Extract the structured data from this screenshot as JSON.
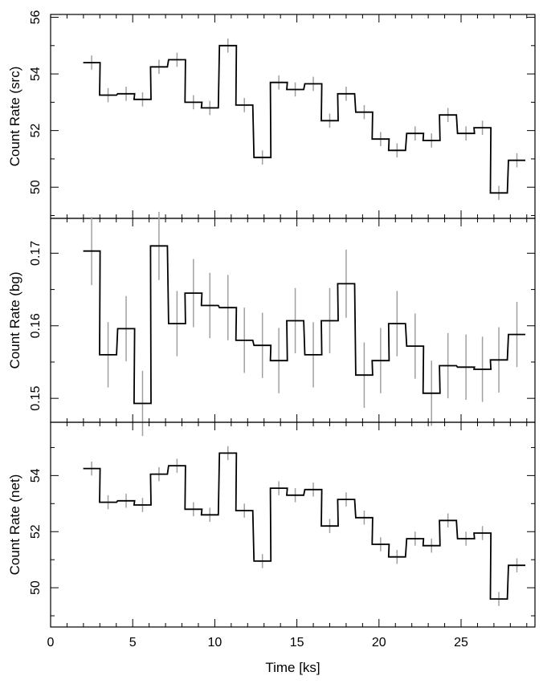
{
  "chart_data": [
    {
      "type": "line",
      "step": true,
      "ylabel": "Count Rate (src)",
      "xlabel": "",
      "xlim": [
        0,
        29.5
      ],
      "ylim": [
        48.9,
        56.1
      ],
      "yticks": [
        50,
        52,
        54,
        56
      ],
      "ytick_labels": [
        "50",
        "52",
        "54",
        "56"
      ],
      "bin_width": 1.03,
      "x": [
        2.5,
        3.5,
        4.6,
        5.6,
        6.6,
        7.7,
        8.7,
        9.7,
        10.8,
        11.8,
        12.9,
        13.9,
        14.9,
        16.0,
        17.0,
        18.0,
        19.1,
        20.1,
        21.1,
        22.2,
        23.2,
        24.2,
        25.3,
        26.3,
        27.3,
        28.4
      ],
      "y": [
        54.4,
        53.25,
        53.3,
        53.1,
        54.25,
        54.5,
        53.0,
        52.8,
        55.0,
        52.9,
        51.05,
        53.7,
        53.45,
        53.65,
        52.35,
        53.3,
        52.65,
        51.7,
        51.3,
        51.9,
        51.65,
        52.55,
        51.9,
        52.1,
        49.8,
        50.95
      ],
      "yerr": [
        0.25,
        0.25,
        0.25,
        0.25,
        0.25,
        0.25,
        0.25,
        0.25,
        0.25,
        0.25,
        0.25,
        0.25,
        0.25,
        0.25,
        0.25,
        0.25,
        0.25,
        0.25,
        0.25,
        0.25,
        0.25,
        0.25,
        0.25,
        0.25,
        0.25,
        0.25
      ]
    },
    {
      "type": "line",
      "step": true,
      "ylabel": "Count Rate (bg)",
      "xlabel": "",
      "xlim": [
        0,
        29.5
      ],
      "ylim": [
        0.1467,
        0.1748
      ],
      "yticks": [
        0.15,
        0.16,
        0.17
      ],
      "ytick_labels": [
        "0.15",
        "0.16",
        "0.17"
      ],
      "bin_width": 1.03,
      "x": [
        2.5,
        3.5,
        4.6,
        5.6,
        6.6,
        7.7,
        8.7,
        9.7,
        10.8,
        11.8,
        12.9,
        13.9,
        14.9,
        16.0,
        17.0,
        18.0,
        19.1,
        20.1,
        21.1,
        22.2,
        23.2,
        24.2,
        25.3,
        26.3,
        27.3,
        28.4
      ],
      "y": [
        0.1703,
        0.156,
        0.1596,
        0.1493,
        0.171,
        0.1603,
        0.1645,
        0.1628,
        0.1625,
        0.158,
        0.1573,
        0.1552,
        0.1607,
        0.156,
        0.1607,
        0.1658,
        0.1532,
        0.1552,
        0.1603,
        0.1572,
        0.1507,
        0.1545,
        0.1543,
        0.154,
        0.1553,
        0.1588
      ],
      "yerr": [
        0.0047,
        0.0045,
        0.0045,
        0.0045,
        0.0047,
        0.0045,
        0.0047,
        0.0045,
        0.0045,
        0.0045,
        0.0045,
        0.0045,
        0.0045,
        0.0045,
        0.0045,
        0.0047,
        0.0045,
        0.0045,
        0.0045,
        0.0045,
        0.0045,
        0.0045,
        0.0045,
        0.0045,
        0.0045,
        0.0045
      ]
    },
    {
      "type": "line",
      "step": true,
      "ylabel": "Count Rate (net)",
      "xlabel": "Time [ks]",
      "xlim": [
        0,
        29.5
      ],
      "ylim": [
        48.6,
        55.9
      ],
      "yticks": [
        50,
        52,
        54
      ],
      "ytick_labels": [
        "50",
        "52",
        "54"
      ],
      "xticks": [
        0,
        5,
        10,
        15,
        20,
        25
      ],
      "xtick_labels": [
        "0",
        "5",
        "10",
        "15",
        "20",
        "25"
      ],
      "bin_width": 1.03,
      "x": [
        2.5,
        3.5,
        4.6,
        5.6,
        6.6,
        7.7,
        8.7,
        9.7,
        10.8,
        11.8,
        12.9,
        13.9,
        14.9,
        16.0,
        17.0,
        18.0,
        19.1,
        20.1,
        21.1,
        22.2,
        23.2,
        24.2,
        25.3,
        26.3,
        27.3,
        28.4
      ],
      "y": [
        54.25,
        53.05,
        53.1,
        52.95,
        54.05,
        54.35,
        52.8,
        52.6,
        54.8,
        52.75,
        50.95,
        53.55,
        53.3,
        53.5,
        52.2,
        53.15,
        52.5,
        51.55,
        51.1,
        51.75,
        51.5,
        52.4,
        51.75,
        51.95,
        49.6,
        50.8
      ],
      "yerr": [
        0.25,
        0.25,
        0.25,
        0.25,
        0.25,
        0.25,
        0.25,
        0.25,
        0.25,
        0.25,
        0.25,
        0.25,
        0.25,
        0.25,
        0.25,
        0.25,
        0.25,
        0.25,
        0.25,
        0.25,
        0.25,
        0.25,
        0.25,
        0.25,
        0.25,
        0.25
      ]
    }
  ],
  "colors": {
    "step_line": "#000000",
    "error_bars": "#a0a0a0",
    "frame": "#000000"
  }
}
